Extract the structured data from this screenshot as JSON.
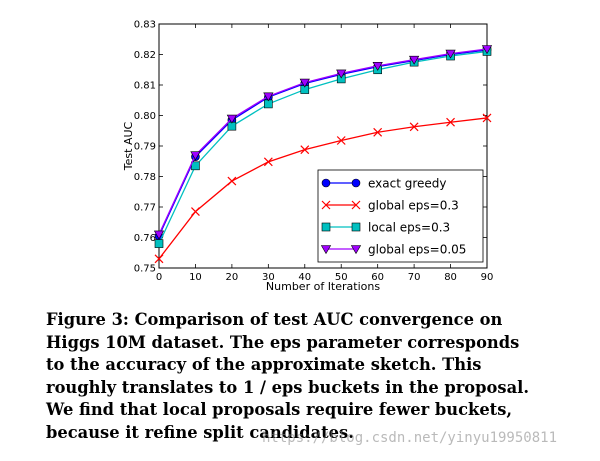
{
  "chart_data": {
    "type": "line",
    "ylabel": "Test AUC",
    "xlabel": "Number of Iterations",
    "xlim": [
      0,
      90
    ],
    "ylim": [
      0.75,
      0.83
    ],
    "x_ticks": [
      0,
      10,
      20,
      30,
      40,
      50,
      60,
      70,
      80,
      90
    ],
    "y_ticks": [
      0.75,
      0.76,
      0.77,
      0.78,
      0.79,
      0.8,
      0.81,
      0.82,
      0.83
    ],
    "y_tick_labels": [
      "0.75",
      "0.76",
      "0.77",
      "0.78",
      "0.79",
      "0.80",
      "0.81",
      "0.82",
      "0.83"
    ],
    "x": [
      0,
      10,
      20,
      30,
      40,
      50,
      60,
      70,
      80,
      90
    ],
    "legend_position": "lower-right",
    "series": [
      {
        "name": "exact greedy",
        "color": "#0000ff",
        "marker": "circle",
        "values": [
          0.7605,
          0.7865,
          0.7985,
          0.806,
          0.8105,
          0.8135,
          0.816,
          0.818,
          0.82,
          0.8215
        ]
      },
      {
        "name": "global eps=0.3",
        "color": "#ff0000",
        "marker": "x",
        "values": [
          0.753,
          0.7685,
          0.7785,
          0.7848,
          0.7888,
          0.7918,
          0.7945,
          0.7963,
          0.7978,
          0.7992
        ]
      },
      {
        "name": "local eps=0.3",
        "color": "#00c0c0",
        "marker": "square",
        "values": [
          0.758,
          0.7835,
          0.7965,
          0.8038,
          0.8085,
          0.812,
          0.815,
          0.8175,
          0.8195,
          0.821
        ]
      },
      {
        "name": "global eps=0.05",
        "color": "#a000ff",
        "marker": "triangle-down",
        "values": [
          0.761,
          0.787,
          0.799,
          0.8063,
          0.8108,
          0.8138,
          0.8163,
          0.8183,
          0.8203,
          0.8218
        ]
      }
    ]
  },
  "caption": {
    "lines": [
      "Figure 3: Comparison of test AUC convergence on",
      "Higgs 10M dataset. The eps parameter corresponds",
      "to the accuracy of the approximate sketch. This",
      "roughly translates to 1 / eps buckets in the proposal.",
      "We find that local proposals require fewer buckets,",
      "because it refine split candidates."
    ]
  },
  "watermark": "https://blog.csdn.net/yinyu19950811"
}
